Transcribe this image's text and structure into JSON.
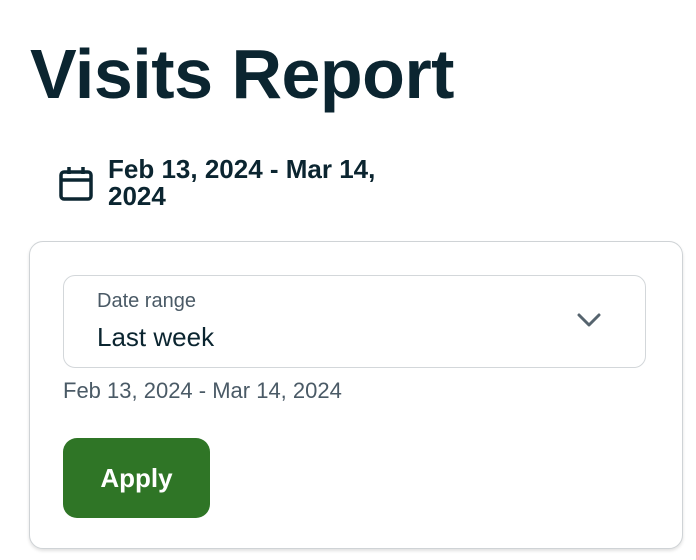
{
  "page": {
    "title": "Visits Report"
  },
  "date_button": {
    "label": "Feb 13, 2024 - Mar 14, 2024",
    "icon": "calendar-icon"
  },
  "popover": {
    "select": {
      "label": "Date range",
      "value": "Last week",
      "icon": "chevron-down-icon"
    },
    "helper_text": "Feb 13, 2024 - Mar 14, 2024",
    "apply_label": "Apply"
  },
  "colors": {
    "primary": "#2f7526",
    "text": "#0b2530"
  }
}
